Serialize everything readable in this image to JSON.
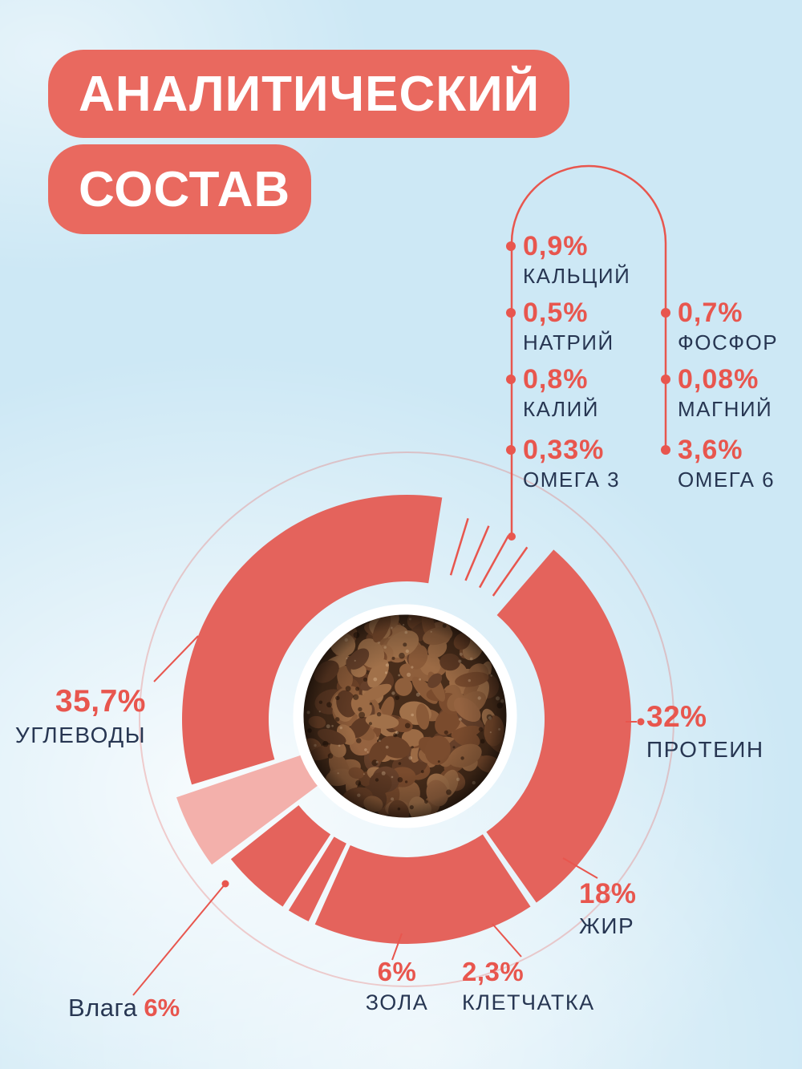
{
  "title": {
    "line1": "АНАЛИТИЧЕСКИЙ",
    "line2": "СОСТАВ"
  },
  "colors": {
    "background": "#cde8f5",
    "banner": "#e9695f",
    "accent": "#e8564e",
    "ring": "#e4635c",
    "moisture": "#f3b0ab",
    "navy": "#273652",
    "white": "#ffffff"
  },
  "minerals": {
    "left": [
      {
        "value": "0,9%",
        "label": "КАЛЬЦИЙ"
      },
      {
        "value": "0,5%",
        "label": "НАТРИЙ"
      },
      {
        "value": "0,8%",
        "label": "КАЛИЙ"
      },
      {
        "value": "0,33%",
        "label": "ОМЕГА 3"
      }
    ],
    "right": [
      {
        "value": "0,7%",
        "label": "ФОСФОР"
      },
      {
        "value": "0,08%",
        "label": "МАГНИЙ"
      },
      {
        "value": "3,6%",
        "label": "ОМЕГА 6"
      }
    ]
  },
  "chart_data": {
    "type": "pie",
    "subtype": "donut",
    "title": "Аналитический состав",
    "center_image": "photo of dry pet food kibble",
    "legend_position": "around",
    "gap_degrees": 30,
    "start_angle_deg": 40,
    "segments": [
      {
        "label": "ПРОТЕИН",
        "value": 32,
        "display": "32%"
      },
      {
        "label": "ЖИР",
        "value": 18,
        "display": "18%"
      },
      {
        "label": "КЛЕТЧАТКА",
        "value": 2.3,
        "display": "2,3%"
      },
      {
        "label": "ЗОЛА",
        "value": 6,
        "display": "6%"
      },
      {
        "label": "Влага",
        "value": 6,
        "display": "6%",
        "variant": "moisture"
      },
      {
        "label": "УГЛЕВОДЫ",
        "value": 35.7,
        "display": "35,7%"
      }
    ]
  }
}
